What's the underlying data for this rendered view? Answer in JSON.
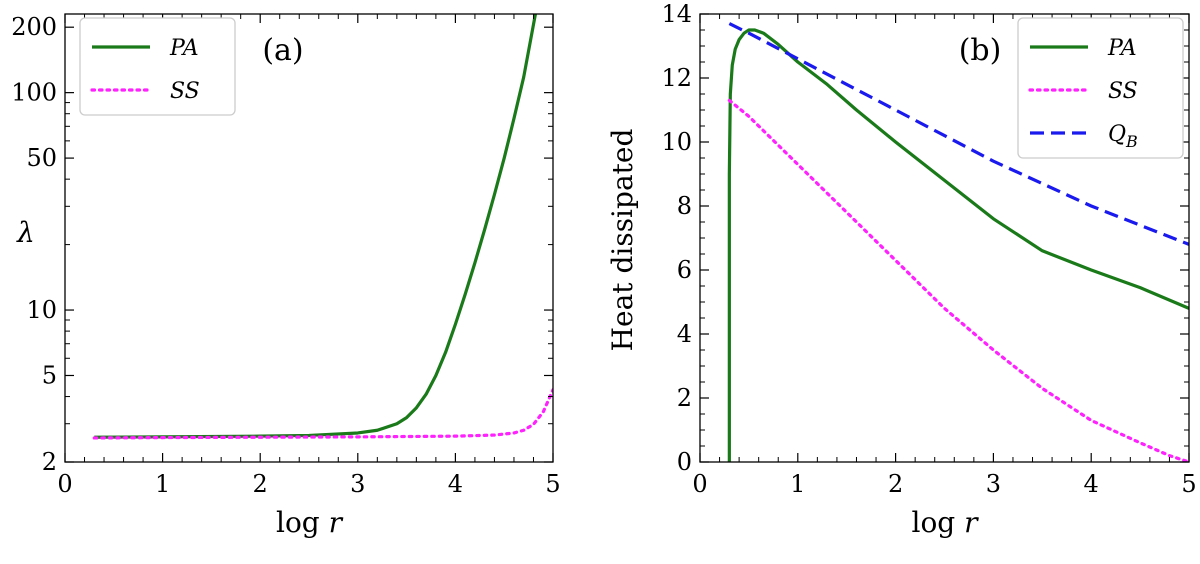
{
  "chart_data": [
    {
      "type": "line",
      "panel_label": "(a)",
      "xlabel": "log r",
      "ylabel": "λ",
      "xscale": "linear",
      "yscale": "log",
      "xlim": [
        0,
        5
      ],
      "ylim": [
        2,
        230
      ],
      "xticks": [
        0,
        1,
        2,
        3,
        4,
        5
      ],
      "yticks": [
        2,
        5,
        10,
        50,
        100,
        200
      ],
      "legend": "upper-left",
      "grid": false,
      "series": [
        {
          "name": "PA",
          "color": "#1a7a1a",
          "style": "solid",
          "x": [
            0.3,
            1.0,
            2.0,
            2.5,
            3.0,
            3.2,
            3.4,
            3.5,
            3.6,
            3.7,
            3.8,
            3.9,
            4.0,
            4.1,
            4.2,
            4.3,
            4.4,
            4.5,
            4.6,
            4.7,
            4.82
          ],
          "y": [
            2.6,
            2.61,
            2.63,
            2.65,
            2.72,
            2.8,
            3.0,
            3.2,
            3.55,
            4.1,
            5.0,
            6.4,
            8.6,
            11.8,
            16.5,
            23.5,
            34,
            50,
            76,
            118,
            230
          ]
        },
        {
          "name": "SS",
          "color": "#ff22ff",
          "style": "dotted",
          "x": [
            0.3,
            1.0,
            2.0,
            3.0,
            4.0,
            4.4,
            4.6,
            4.7,
            4.8,
            4.9,
            5.0
          ],
          "y": [
            2.58,
            2.59,
            2.6,
            2.61,
            2.63,
            2.66,
            2.72,
            2.8,
            2.98,
            3.4,
            4.3
          ]
        }
      ]
    },
    {
      "type": "line",
      "panel_label": "(b)",
      "xlabel": "log r",
      "ylabel": "Heat dissipated",
      "xscale": "linear",
      "yscale": "linear",
      "xlim": [
        0,
        5
      ],
      "ylim": [
        0,
        14
      ],
      "xticks": [
        0,
        1,
        2,
        3,
        4,
        5
      ],
      "yticks": [
        0,
        2,
        4,
        6,
        8,
        10,
        12,
        14
      ],
      "legend": "upper-right",
      "grid": false,
      "series": [
        {
          "name": "PA",
          "color": "#1a7a1a",
          "style": "solid",
          "x": [
            0.3,
            0.3,
            0.31,
            0.33,
            0.36,
            0.4,
            0.45,
            0.5,
            0.56,
            0.65,
            0.8,
            1.0,
            1.3,
            1.6,
            2.0,
            2.5,
            3.0,
            3.5,
            4.0,
            4.5,
            5.0
          ],
          "y": [
            0.0,
            9.0,
            11.5,
            12.4,
            12.9,
            13.2,
            13.4,
            13.5,
            13.5,
            13.4,
            13.05,
            12.5,
            11.8,
            11.0,
            10.0,
            8.8,
            7.6,
            6.6,
            6.0,
            5.45,
            4.8
          ]
        },
        {
          "name": "SS",
          "color": "#ff22ff",
          "style": "dotted",
          "x": [
            0.3,
            0.5,
            0.7,
            1.0,
            1.5,
            2.0,
            2.5,
            3.0,
            3.5,
            4.0,
            4.5,
            4.8,
            5.0
          ],
          "y": [
            11.3,
            10.8,
            10.2,
            9.3,
            7.8,
            6.3,
            4.8,
            3.5,
            2.3,
            1.3,
            0.6,
            0.2,
            0.0
          ]
        },
        {
          "name": "Q_B",
          "color": "#1a1aee",
          "style": "dashed",
          "x": [
            0.3,
            0.5,
            1.0,
            1.5,
            2.0,
            2.5,
            3.0,
            3.5,
            4.0,
            4.5,
            5.0
          ],
          "y": [
            13.7,
            13.4,
            12.6,
            11.8,
            11.0,
            10.2,
            9.4,
            8.7,
            8.0,
            7.4,
            6.8
          ]
        }
      ]
    }
  ]
}
